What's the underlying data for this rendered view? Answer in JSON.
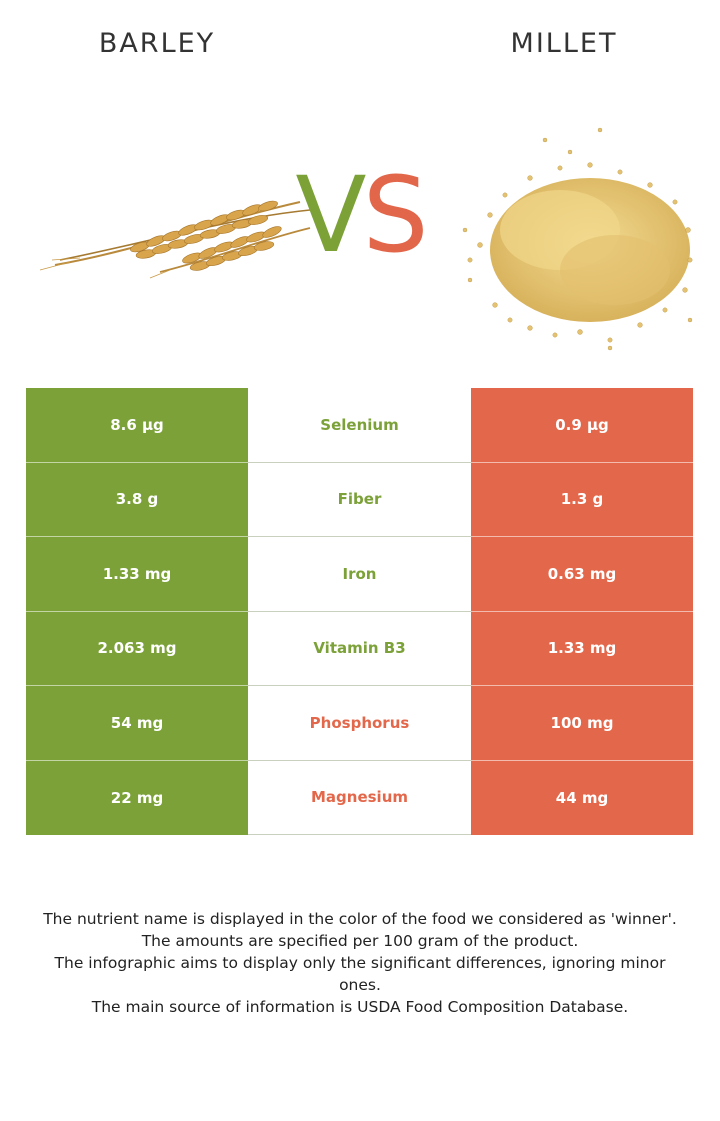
{
  "header": {
    "left_food": "BARLEY",
    "right_food": "MILLET",
    "vs_v": "V",
    "vs_s": "S"
  },
  "colors": {
    "barley_green": "#7ba138",
    "millet_orange": "#e3684b",
    "vs_green": "#7ca237",
    "vs_orange": "#e2664a"
  },
  "images": {
    "left": "barley-stalks-image",
    "right": "millet-grains-image"
  },
  "rows": [
    {
      "left": "8.6 µg",
      "nutrient": "Selenium",
      "right": "0.9 µg",
      "winner": "left"
    },
    {
      "left": "3.8 g",
      "nutrient": "Fiber",
      "right": "1.3 g",
      "winner": "left"
    },
    {
      "left": "1.33 mg",
      "nutrient": "Iron",
      "right": "0.63 mg",
      "winner": "left"
    },
    {
      "left": "2.063 mg",
      "nutrient": "Vitamin B3",
      "right": "1.33 mg",
      "winner": "left"
    },
    {
      "left": "54 mg",
      "nutrient": "Phosphorus",
      "right": "100 mg",
      "winner": "right"
    },
    {
      "left": "22 mg",
      "nutrient": "Magnesium",
      "right": "44 mg",
      "winner": "right"
    }
  ],
  "footnotes": [
    "The nutrient name is displayed in the color of the food we considered as 'winner'.",
    "The amounts are specified per 100 gram of the product.",
    "The infographic aims to display only the significant differences, ignoring minor ones.",
    "The main source of information is USDA Food Composition Database."
  ]
}
